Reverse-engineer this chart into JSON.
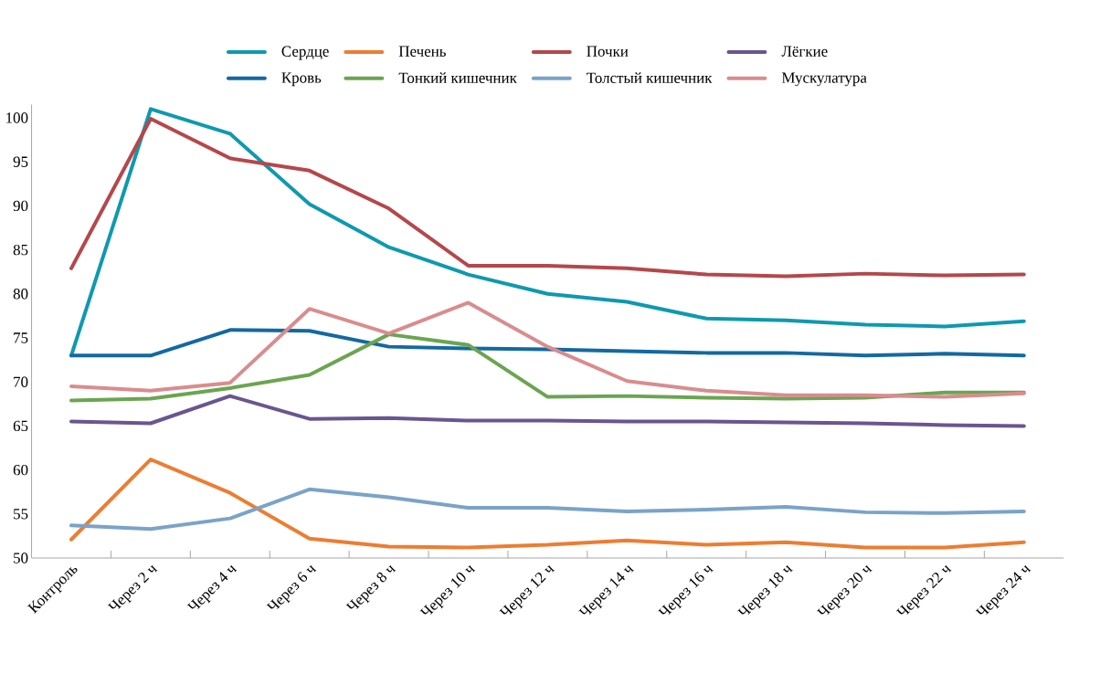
{
  "chart_data": {
    "type": "line",
    "categories": [
      "Контроль",
      "Через 2 ч",
      "Через 4 ч",
      "Через 6 ч",
      "Через 8 ч",
      "Через 10 ч",
      "Через 12 ч",
      "Через 14 ч",
      "Через 16 ч",
      "Через 18 ч",
      "Через 20 ч",
      "Через 22 ч",
      "Через 24 ч"
    ],
    "series": [
      {
        "name": "Сердце",
        "color": "#0e99b0",
        "values": [
          73,
          101,
          98.2,
          90.2,
          85.3,
          82.2,
          80,
          79.1,
          77.2,
          77,
          76.5,
          76.3,
          76.9
        ]
      },
      {
        "name": "Печень",
        "color": "#ed7d31",
        "values": [
          52.1,
          61.2,
          57.4,
          52.2,
          51.3,
          51.2,
          51.5,
          52,
          51.5,
          51.8,
          51.2,
          51.2,
          51.8
        ]
      },
      {
        "name": "Почки",
        "color": "#b5474b",
        "values": [
          82.9,
          99.9,
          95.4,
          94,
          89.7,
          83.2,
          83.2,
          82.9,
          82.2,
          82,
          82.3,
          82.1,
          82.2
        ]
      },
      {
        "name": "Лёгкие",
        "color": "#6a5590",
        "values": [
          65.5,
          65.3,
          68.4,
          65.8,
          65.9,
          65.6,
          65.6,
          65.5,
          65.5,
          65.4,
          65.3,
          65.1,
          65
        ]
      },
      {
        "name": "Кровь",
        "color": "#1369a2",
        "values": [
          73,
          73,
          75.9,
          75.8,
          74,
          73.8,
          73.7,
          73.5,
          73.3,
          73.3,
          73,
          73.2,
          73
        ]
      },
      {
        "name": "Тонкий кишечник",
        "color": "#6aa550",
        "values": [
          67.9,
          68.1,
          69.3,
          70.8,
          75.4,
          74.2,
          68.3,
          68.4,
          68.2,
          68.1,
          68.2,
          68.8,
          68.8
        ]
      },
      {
        "name": "Толстый кишечник",
        "color": "#7aa3c8",
        "values": [
          53.7,
          53.3,
          54.5,
          57.8,
          56.9,
          55.7,
          55.7,
          55.3,
          55.5,
          55.8,
          55.2,
          55.1,
          55.3
        ]
      },
      {
        "name": "Мускулатура",
        "color": "#d98c8e",
        "values": [
          69.5,
          69,
          69.9,
          78.3,
          75.5,
          79,
          74,
          70.1,
          69,
          68.5,
          68.5,
          68.3,
          68.7
        ]
      }
    ],
    "ylim": [
      50,
      101.5
    ],
    "yticks": [
      50,
      55,
      60,
      65,
      70,
      75,
      80,
      85,
      90,
      95,
      100
    ],
    "legend": "top",
    "grid": false,
    "marker": "none",
    "line_style": "solid"
  }
}
